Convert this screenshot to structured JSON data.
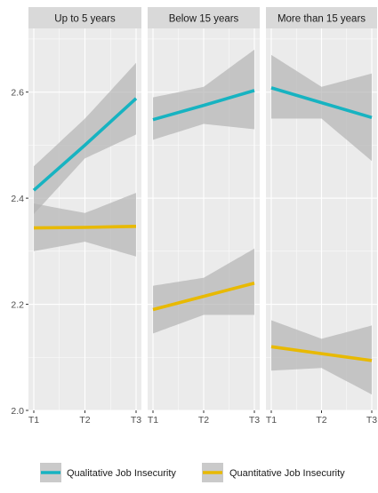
{
  "chart_data": {
    "type": "line",
    "x_categories": [
      "T1",
      "T2",
      "T3"
    ],
    "ylim": [
      2.0,
      2.72
    ],
    "y_ticks": [
      2.0,
      2.2,
      2.4,
      2.6
    ],
    "y_tick_labels": [
      "2.0",
      "2.2",
      "2.4",
      "2.6"
    ],
    "grid": true,
    "confidence_bands": true,
    "legend_position": "bottom",
    "colors": {
      "qualitative": "#17b3c1",
      "quantitative": "#e8b900",
      "band": "#b3b3b3",
      "panel_bg": "#ebebeb",
      "strip_bg": "#d9d9d9",
      "grid": "#ffffff"
    },
    "legend": [
      {
        "key": "qualitative",
        "label": "Qualitative Job Insecurity"
      },
      {
        "key": "quantitative",
        "label": "Quantitative Job Insecurity"
      }
    ],
    "panels": [
      {
        "title": "Up to 5 years",
        "series": [
          {
            "key": "qualitative",
            "values": [
              2.415,
              2.5,
              2.588
            ],
            "lower": [
              2.37,
              2.475,
              2.52
            ],
            "upper": [
              2.46,
              2.55,
              2.655
            ]
          },
          {
            "key": "quantitative",
            "values": [
              2.344,
              2.345,
              2.347
            ],
            "lower": [
              2.3,
              2.318,
              2.29
            ],
            "upper": [
              2.39,
              2.372,
              2.41
            ]
          }
        ]
      },
      {
        "title": "Below 15 years",
        "series": [
          {
            "key": "qualitative",
            "values": [
              2.548,
              2.575,
              2.603
            ],
            "lower": [
              2.51,
              2.54,
              2.53
            ],
            "upper": [
              2.59,
              2.61,
              2.68
            ]
          },
          {
            "key": "quantitative",
            "values": [
              2.19,
              2.215,
              2.24
            ],
            "lower": [
              2.145,
              2.18,
              2.18
            ],
            "upper": [
              2.235,
              2.25,
              2.305
            ]
          }
        ]
      },
      {
        "title": "More than 15 years",
        "series": [
          {
            "key": "qualitative",
            "values": [
              2.608,
              2.58,
              2.552
            ],
            "lower": [
              2.55,
              2.55,
              2.47
            ],
            "upper": [
              2.67,
              2.61,
              2.635
            ]
          },
          {
            "key": "quantitative",
            "values": [
              2.12,
              2.107,
              2.094
            ],
            "lower": [
              2.075,
              2.08,
              2.03
            ],
            "upper": [
              2.17,
              2.135,
              2.16
            ]
          }
        ]
      }
    ]
  }
}
